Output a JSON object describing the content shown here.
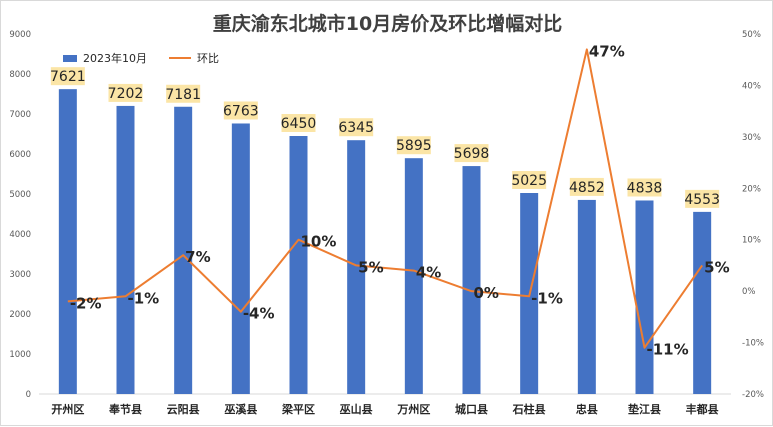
{
  "chart_data": {
    "type": "bar",
    "title": "重庆渝东北城市10月房价及环比增幅对比",
    "categories": [
      "开州区",
      "奉节县",
      "云阳县",
      "巫溪县",
      "梁平区",
      "巫山县",
      "万州区",
      "城口县",
      "石柱县",
      "忠县",
      "垫江县",
      "丰都县"
    ],
    "series": [
      {
        "name": "2023年10月",
        "type": "bar",
        "axis": "left",
        "color": "#4472c4",
        "values": [
          7621,
          7202,
          7181,
          6763,
          6450,
          6345,
          5895,
          5698,
          5025,
          4852,
          4838,
          4553
        ],
        "labels": [
          "7621",
          "7202",
          "7181",
          "6763",
          "6450",
          "6345",
          "5895",
          "5698",
          "5025",
          "4852",
          "4838",
          "4553"
        ]
      },
      {
        "name": "环比",
        "type": "line",
        "axis": "right",
        "color": "#ed7d31",
        "values": [
          -2,
          -1,
          7,
          -4,
          10,
          5,
          4,
          0,
          -1,
          47,
          -11,
          5
        ],
        "labels": [
          "-2%",
          "-1%",
          "7%",
          "-4%",
          "10%",
          "5%",
          "4%",
          "0%",
          "-1%",
          "47%",
          "-11%",
          "5%"
        ]
      }
    ],
    "y_left": {
      "min": 0,
      "max": 9000,
      "ticks": [
        "0",
        "1000",
        "2000",
        "3000",
        "4000",
        "5000",
        "6000",
        "7000",
        "8000",
        "9000"
      ]
    },
    "y_right": {
      "min": -20,
      "max": 50,
      "ticks": [
        "-20%",
        "-10%",
        "0%",
        "10%",
        "20%",
        "30%",
        "40%",
        "50%"
      ]
    },
    "bar_label_background": "#fbe5a6",
    "grid": false,
    "legend_position": "top-left"
  }
}
